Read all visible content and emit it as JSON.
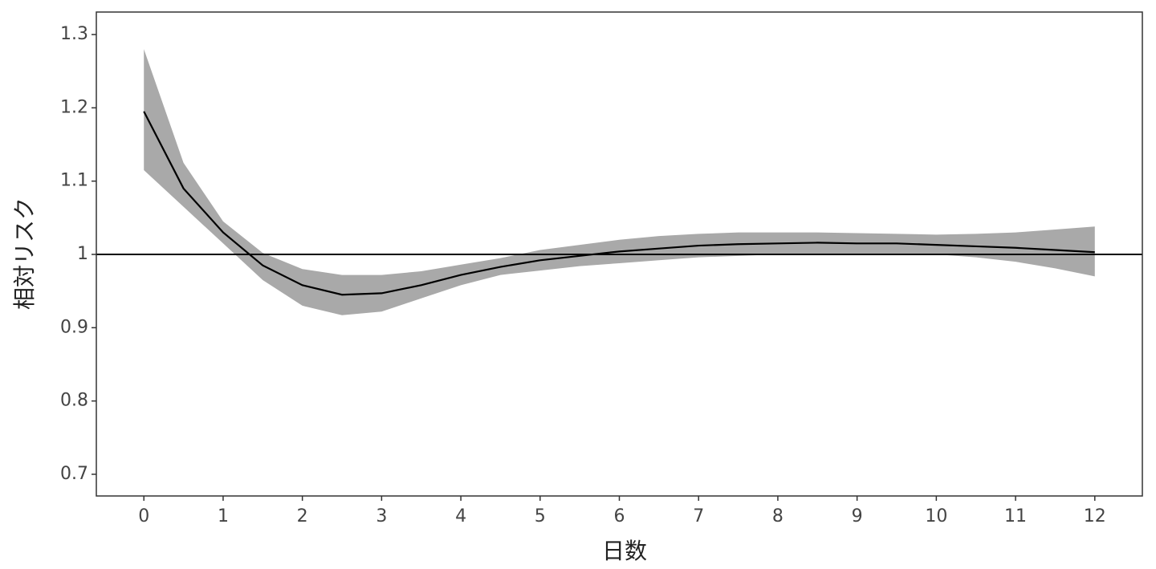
{
  "chart_data": {
    "type": "line_band",
    "x_label": "日数",
    "y_label": "相対リスク",
    "x": [
      0,
      0.5,
      1,
      1.5,
      2,
      2.5,
      3,
      3.5,
      4,
      4.5,
      5,
      5.5,
      6,
      6.5,
      7,
      7.5,
      8,
      8.5,
      9,
      9.5,
      10,
      10.5,
      11,
      11.5,
      12
    ],
    "series": [
      {
        "color": "#000000",
        "band_color": "#a9a9a9",
        "values": [
          1.195,
          1.09,
          1.03,
          0.985,
          0.958,
          0.945,
          0.947,
          0.958,
          0.972,
          0.983,
          0.992,
          0.998,
          1.004,
          1.008,
          1.012,
          1.014,
          1.015,
          1.016,
          1.015,
          1.015,
          1.013,
          1.011,
          1.009,
          1.006,
          1.003
        ],
        "lower": [
          1.115,
          1.065,
          1.015,
          0.965,
          0.93,
          0.917,
          0.922,
          0.94,
          0.958,
          0.972,
          0.978,
          0.984,
          0.988,
          0.992,
          0.996,
          0.998,
          1.0,
          1.001,
          1.001,
          1.001,
          1.0,
          0.996,
          0.99,
          0.981,
          0.97
        ],
        "upper": [
          1.28,
          1.125,
          1.045,
          1.002,
          0.98,
          0.972,
          0.972,
          0.977,
          0.986,
          0.995,
          1.006,
          1.013,
          1.02,
          1.025,
          1.028,
          1.03,
          1.03,
          1.03,
          1.029,
          1.028,
          1.027,
          1.028,
          1.03,
          1.034,
          1.038
        ]
      }
    ],
    "hline": 1,
    "xlim": [
      -0.6,
      12.6
    ],
    "ylim": [
      0.6704,
      1.3307
    ],
    "xticks": [
      0,
      1,
      2,
      3,
      4,
      5,
      6,
      7,
      8,
      9,
      10,
      11,
      12
    ],
    "yticks": [
      0.7,
      0.8,
      0.9,
      1,
      1.1,
      1.2,
      1.3
    ]
  }
}
